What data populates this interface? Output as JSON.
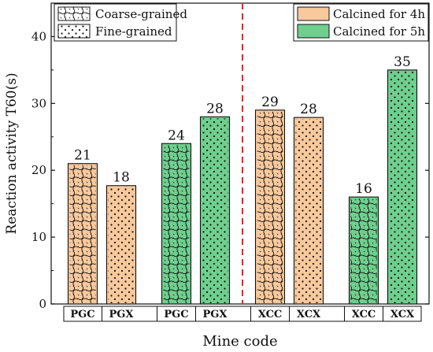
{
  "chart_data": {
    "type": "bar",
    "xlabel": "Mine code",
    "ylabel": "Reaction activity T60(s)",
    "ylim": [
      0,
      45
    ],
    "yticks": [
      0,
      10,
      20,
      30,
      40
    ],
    "categories": [
      "PGC",
      "PGX",
      "PGC",
      "PGX",
      "XCC",
      "XCX",
      "XCC",
      "XCX"
    ],
    "values": [
      21,
      18,
      24,
      28,
      29,
      28,
      16,
      35
    ],
    "value_labels": [
      "21",
      "18",
      "24",
      "28",
      "29",
      "28",
      "16",
      "35"
    ],
    "bars": [
      {
        "category": "PGC",
        "value": 21,
        "calcination": "4h",
        "grain": "coarse"
      },
      {
        "category": "PGX",
        "value": 17.7,
        "calcination": "4h",
        "grain": "fine"
      },
      {
        "category": "PGC",
        "value": 24,
        "calcination": "5h",
        "grain": "coarse"
      },
      {
        "category": "PGX",
        "value": 28,
        "calcination": "5h",
        "grain": "fine"
      },
      {
        "category": "XCC",
        "value": 29,
        "calcination": "4h",
        "grain": "coarse"
      },
      {
        "category": "XCX",
        "value": 27.9,
        "calcination": "4h",
        "grain": "fine"
      },
      {
        "category": "XCC",
        "value": 16,
        "calcination": "5h",
        "grain": "coarse"
      },
      {
        "category": "XCX",
        "value": 35,
        "calcination": "5h",
        "grain": "fine"
      }
    ],
    "legend_pattern": [
      {
        "key": "coarse",
        "label": "Coarse-grained"
      },
      {
        "key": "fine",
        "label": "Fine-grained"
      }
    ],
    "legend_color": [
      {
        "key": "4h",
        "label": "Calcined for 4h"
      },
      {
        "key": "5h",
        "label": "Calcined for 5h"
      }
    ],
    "colors": {
      "4h": "#f8c99c",
      "5h": "#6fcf8e",
      "divider": "#e8262b",
      "axis": "#111111"
    },
    "divider": "dashed red vertical line between group 2 and group 3",
    "grid": false
  }
}
